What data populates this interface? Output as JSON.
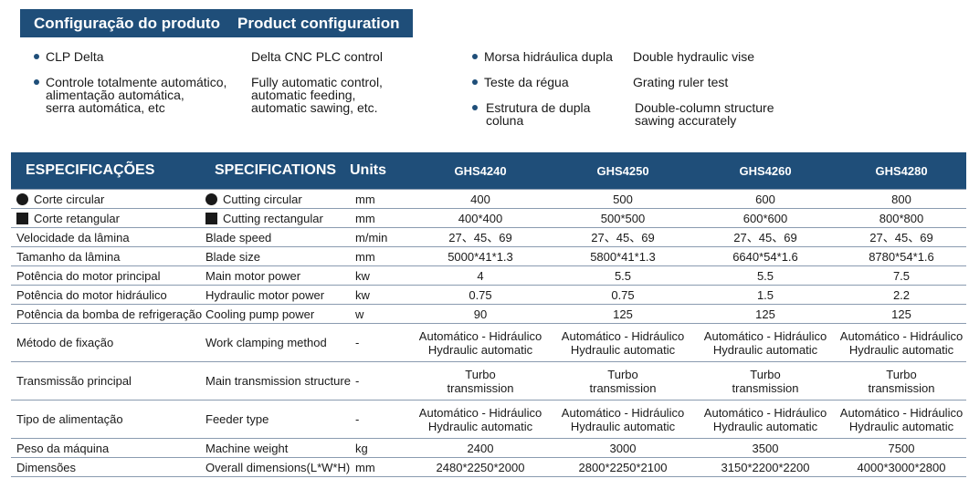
{
  "header": {
    "pt_title": "Configuração do produto",
    "en_title": "Product configuration"
  },
  "config": {
    "left": [
      {
        "pt": "CLP Delta",
        "en": "Delta CNC PLC control"
      },
      {
        "pt": [
          "Controle totalmente automático,",
          "alimentação automática,",
          "serra automática, etc"
        ],
        "en": [
          "Fully automatic control,",
          "automatic feeding,",
          "automatic sawing, etc."
        ]
      }
    ],
    "right": [
      {
        "pt": "Morsa hidráulica dupla",
        "en": "Double hydraulic vise"
      },
      {
        "pt": "Teste da régua",
        "en": "Grating ruler test"
      },
      {
        "pt": [
          "Estrutura de dupla",
          "coluna"
        ],
        "en": [
          "Double-column structure",
          "sawing accurately"
        ]
      }
    ]
  },
  "table": {
    "headers": [
      "ESPECIFICAÇÕES",
      "SPECIFICATIONS",
      "Units",
      "GHS4240",
      "GHS4250",
      "GHS4260",
      "GHS4280"
    ],
    "rows": [
      {
        "pt": "Corte circular",
        "en": "Cutting circular",
        "unit": "mm",
        "vals": [
          "400",
          "500",
          "600",
          "800"
        ],
        "marker": "circle"
      },
      {
        "pt": "Corte retangular",
        "en": "Cutting rectangular",
        "unit": "mm",
        "vals": [
          "400*400",
          "500*500",
          "600*600",
          "800*800"
        ],
        "marker": "square"
      },
      {
        "pt": "Velocidade da lâmina",
        "en": "Blade speed",
        "unit": "m/min",
        "vals": [
          "27、45、69",
          "27、45、69",
          "27、45、69",
          "27、45、69"
        ]
      },
      {
        "pt": "Tamanho da lâmina",
        "en": "Blade size",
        "unit": "mm",
        "vals": [
          "5000*41*1.3",
          "5800*41*1.3",
          "6640*54*1.6",
          "8780*54*1.6"
        ]
      },
      {
        "pt": "Potência do motor principal",
        "en": "Main motor power",
        "unit": "kw",
        "vals": [
          "4",
          "5.5",
          "5.5",
          "7.5"
        ]
      },
      {
        "pt": "Potência do motor hidráulico",
        "en": "Hydraulic motor power",
        "unit": "kw",
        "vals": [
          "0.75",
          "0.75",
          "1.5",
          "2.2"
        ]
      },
      {
        "pt": "Potência da bomba de refrigeração",
        "en": "Cooling pump power",
        "unit": "w",
        "vals": [
          "90",
          "125",
          "125",
          "125"
        ]
      },
      {
        "pt": "Método de fixação",
        "en": "Work clamping method",
        "unit": "-",
        "vals": [
          "Automático - Hidráulico\nHydraulic automatic",
          "Automático - Hidráulico\nHydraulic automatic",
          "Automático - Hidráulico\nHydraulic automatic",
          "Automático - Hidráulico\nHydraulic automatic"
        ],
        "tall": true
      },
      {
        "pt": "Transmissão principal",
        "en": "Main transmission structure",
        "unit": "-",
        "vals": [
          "Turbo\ntransmission",
          "Turbo\ntransmission",
          "Turbo\ntransmission",
          "Turbo\ntransmission"
        ],
        "tall": true
      },
      {
        "pt": "Tipo de alimentação",
        "en": "Feeder type",
        "unit": "-",
        "vals": [
          "Automático - Hidráulico\nHydraulic automatic",
          "Automático - Hidráulico\nHydraulic automatic",
          "Automático - Hidráulico\nHydraulic automatic",
          "Automático - Hidráulico\nHydraulic automatic"
        ],
        "tall": true
      },
      {
        "pt": "Peso da máquina",
        "en": "Machine weight",
        "unit": "kg",
        "vals": [
          "2400",
          "3000",
          "3500",
          "7500"
        ]
      },
      {
        "pt": "Dimensões",
        "en": "Overall dimensions(L*W*H)",
        "unit": "mm",
        "vals": [
          "2480*2250*2000",
          "2800*2250*2100",
          "3150*2200*2200",
          "4000*3000*2800"
        ]
      }
    ]
  }
}
